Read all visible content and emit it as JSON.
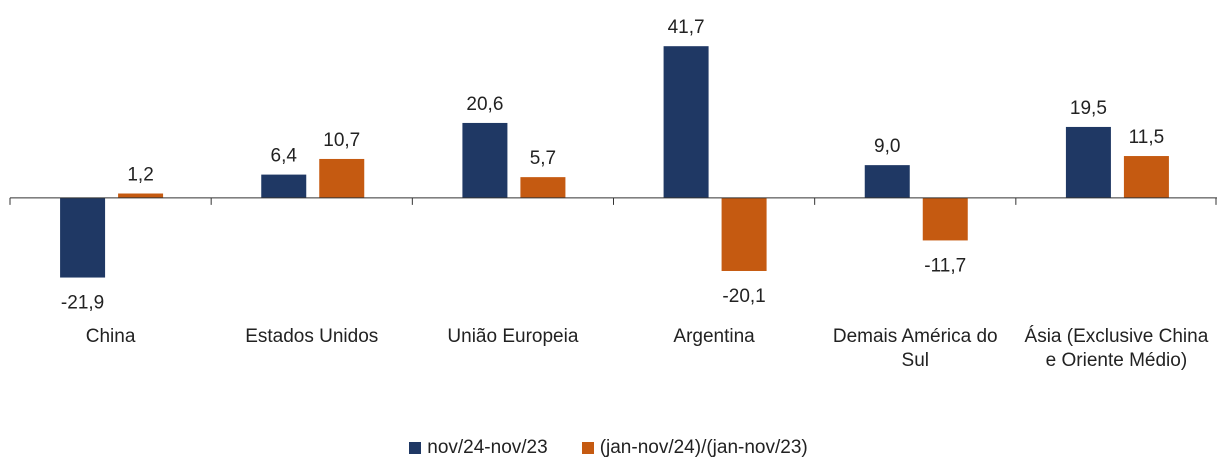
{
  "chart_data": {
    "type": "bar",
    "categories": [
      "China",
      "Estados Unidos",
      "União Europeia",
      "Argentina",
      "Demais América do Sul",
      "Ásia (Exclusive China e Oriente Médio)"
    ],
    "series": [
      {
        "name": "nov/24-nov/23",
        "color": "#1f3864",
        "values": [
          -21.9,
          6.4,
          20.6,
          41.7,
          9.0,
          19.5
        ],
        "value_labels": [
          "-21,9",
          "6,4",
          "20,6",
          "41,7",
          "9,0",
          "19,5"
        ]
      },
      {
        "name": "(jan-nov/24)/(jan-nov/23)",
        "color": "#c55a11",
        "values": [
          1.2,
          10.7,
          5.7,
          -20.1,
          -11.7,
          11.5
        ],
        "value_labels": [
          "1,2",
          "10,7",
          "5,7",
          "-20,1",
          "-11,7",
          "11,5"
        ]
      }
    ],
    "ylim": [
      -30,
      50
    ],
    "legend": "bottom"
  }
}
